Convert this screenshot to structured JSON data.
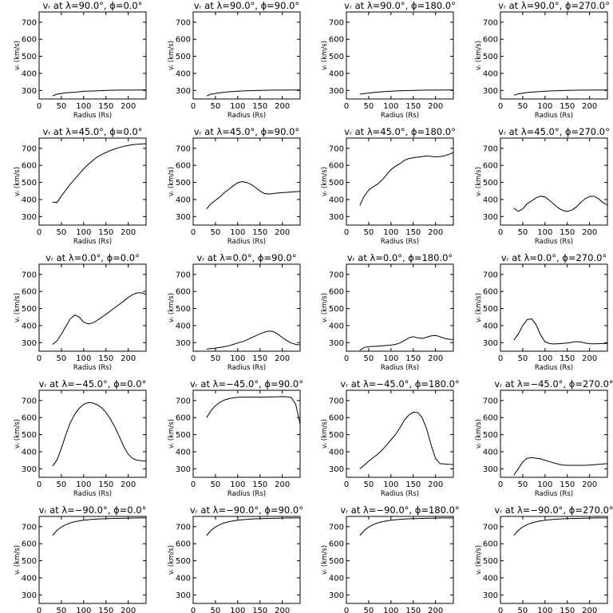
{
  "chart_data": {
    "type": "line",
    "xlabel": "Radius (Rs)",
    "ylabel": "vᵣ (km/s)",
    "xlim": [
      0,
      240
    ],
    "ylim": [
      250,
      760
    ],
    "xticks": [
      0,
      50,
      100,
      150,
      200
    ],
    "yticks": [
      300,
      400,
      500,
      600,
      700
    ],
    "grid": false,
    "panels": [
      {
        "title": "vᵣ at λ=90.0°, ϕ=0.0°",
        "x": [
          30,
          40,
          60,
          80,
          100,
          120,
          150,
          180,
          200,
          230,
          240
        ],
        "y": [
          268,
          278,
          286,
          290,
          295,
          297,
          300,
          302,
          302,
          303,
          303
        ]
      },
      {
        "title": "vᵣ at λ=90.0°, ϕ=90.0°",
        "x": [
          30,
          40,
          60,
          80,
          100,
          120,
          150,
          180,
          200,
          230,
          240
        ],
        "y": [
          268,
          278,
          286,
          292,
          296,
          298,
          300,
          302,
          302,
          303,
          303
        ]
      },
      {
        "title": "vᵣ at λ=90.0°, ϕ=180.0°",
        "x": [
          30,
          40,
          60,
          80,
          100,
          120,
          150,
          180,
          200,
          230,
          240
        ],
        "y": [
          278,
          282,
          288,
          292,
          296,
          298,
          300,
          302,
          302,
          303,
          303
        ]
      },
      {
        "title": "vᵣ at λ=90.0°, ϕ=270.0°",
        "x": [
          30,
          40,
          60,
          80,
          100,
          120,
          150,
          180,
          200,
          230,
          240
        ],
        "y": [
          272,
          280,
          288,
          292,
          296,
          298,
          300,
          302,
          302,
          303,
          303
        ]
      },
      {
        "title": "vᵣ at λ=45.0°, ϕ=0.0°",
        "x": [
          30,
          40,
          50,
          60,
          70,
          80,
          90,
          100,
          110,
          120,
          130,
          140,
          150,
          160,
          170,
          180,
          190,
          200,
          210,
          220,
          230,
          240
        ],
        "y": [
          385,
          382,
          420,
          455,
          490,
          520,
          550,
          580,
          605,
          628,
          648,
          663,
          676,
          687,
          697,
          705,
          712,
          717,
          721,
          724,
          726,
          727
        ]
      },
      {
        "title": "vᵣ at λ=45.0°, ϕ=90.0°",
        "x": [
          30,
          40,
          50,
          60,
          70,
          80,
          90,
          100,
          110,
          120,
          130,
          140,
          150,
          160,
          170,
          180,
          190,
          200,
          210,
          220,
          230,
          240
        ],
        "y": [
          345,
          375,
          395,
          415,
          440,
          460,
          480,
          498,
          505,
          500,
          488,
          470,
          450,
          435,
          432,
          435,
          438,
          440,
          442,
          444,
          446,
          448
        ]
      },
      {
        "title": "vᵣ at λ=45.0°, ϕ=180.0°",
        "x": [
          30,
          40,
          50,
          60,
          70,
          80,
          90,
          100,
          110,
          120,
          130,
          140,
          150,
          160,
          170,
          180,
          190,
          200,
          210,
          220,
          230,
          240
        ],
        "y": [
          365,
          420,
          455,
          475,
          490,
          515,
          545,
          575,
          595,
          610,
          630,
          640,
          645,
          648,
          652,
          655,
          653,
          650,
          652,
          656,
          665,
          675
        ]
      },
      {
        "title": "vᵣ at λ=45.0°, ϕ=270.0°",
        "x": [
          30,
          40,
          50,
          60,
          70,
          80,
          90,
          100,
          110,
          120,
          130,
          140,
          150,
          160,
          170,
          180,
          190,
          200,
          210,
          220,
          230,
          240
        ],
        "y": [
          350,
          330,
          345,
          375,
          392,
          410,
          420,
          415,
          395,
          372,
          350,
          335,
          330,
          338,
          355,
          382,
          405,
          418,
          420,
          405,
          382,
          368
        ]
      },
      {
        "title": "vᵣ at λ=0.0°, ϕ=0.0°",
        "x": [
          30,
          40,
          50,
          60,
          70,
          80,
          90,
          100,
          110,
          120,
          130,
          140,
          150,
          160,
          170,
          180,
          190,
          200,
          210,
          220,
          230,
          240
        ],
        "y": [
          290,
          310,
          350,
          395,
          440,
          462,
          450,
          420,
          410,
          415,
          430,
          448,
          466,
          486,
          505,
          524,
          544,
          565,
          582,
          592,
          592,
          582
        ]
      },
      {
        "title": "vᵣ at λ=0.0°, ϕ=90.0°",
        "x": [
          30,
          40,
          50,
          60,
          70,
          80,
          90,
          100,
          110,
          120,
          130,
          140,
          150,
          160,
          170,
          180,
          190,
          200,
          210,
          220,
          230,
          240
        ],
        "y": [
          262,
          265,
          268,
          272,
          276,
          282,
          290,
          298,
          305,
          315,
          328,
          340,
          352,
          362,
          368,
          365,
          350,
          330,
          312,
          298,
          290,
          286
        ]
      },
      {
        "title": "vᵣ at λ=0.0°, ϕ=180.0°",
        "x": [
          30,
          40,
          50,
          60,
          70,
          80,
          90,
          100,
          110,
          120,
          130,
          140,
          150,
          160,
          170,
          180,
          190,
          200,
          210,
          220,
          230,
          240
        ],
        "y": [
          255,
          272,
          276,
          278,
          280,
          282,
          284,
          286,
          290,
          298,
          312,
          328,
          335,
          328,
          325,
          332,
          340,
          342,
          335,
          325,
          320,
          318
        ]
      },
      {
        "title": "vᵣ at λ=0.0°, ϕ=270.0°",
        "x": [
          30,
          40,
          50,
          60,
          70,
          80,
          90,
          100,
          110,
          120,
          130,
          140,
          150,
          160,
          170,
          180,
          190,
          200,
          210,
          220,
          230,
          240
        ],
        "y": [
          315,
          350,
          400,
          435,
          440,
          405,
          345,
          305,
          295,
          292,
          294,
          296,
          298,
          302,
          306,
          304,
          298,
          294,
          293,
          294,
          295,
          296
        ]
      },
      {
        "title": "vᵣ at λ=−45.0°, ϕ=0.0°",
        "x": [
          30,
          40,
          50,
          60,
          70,
          80,
          90,
          100,
          110,
          120,
          130,
          140,
          150,
          160,
          170,
          180,
          190,
          200,
          210,
          220,
          230,
          240
        ],
        "y": [
          315,
          350,
          420,
          500,
          570,
          620,
          655,
          678,
          688,
          686,
          676,
          658,
          630,
          592,
          545,
          488,
          430,
          385,
          360,
          350,
          347,
          346
        ]
      },
      {
        "title": "vᵣ at λ=−45.0°, ϕ=90.0°",
        "x": [
          30,
          40,
          50,
          60,
          70,
          80,
          90,
          100,
          110,
          120,
          130,
          140,
          150,
          160,
          170,
          180,
          190,
          200,
          210,
          220,
          230,
          240
        ],
        "y": [
          600,
          640,
          670,
          690,
          703,
          711,
          716,
          719,
          720,
          720,
          720,
          720,
          720,
          720,
          721,
          721,
          722,
          723,
          722,
          718,
          680,
          560
        ]
      },
      {
        "title": "vᵣ at λ=−45.0°, ϕ=180.0°",
        "x": [
          30,
          40,
          50,
          60,
          70,
          80,
          90,
          100,
          110,
          120,
          130,
          140,
          150,
          160,
          170,
          180,
          190,
          200,
          210,
          220,
          230,
          240
        ],
        "y": [
          300,
          320,
          345,
          365,
          385,
          410,
          438,
          470,
          500,
          540,
          585,
          615,
          632,
          630,
          600,
          535,
          440,
          360,
          330,
          328,
          326,
          325
        ]
      },
      {
        "title": "vᵣ at λ=−45.0°, ϕ=270.0°",
        "x": [
          30,
          40,
          50,
          60,
          70,
          80,
          90,
          100,
          110,
          120,
          130,
          140,
          150,
          160,
          170,
          180,
          190,
          200,
          210,
          220,
          230,
          240
        ],
        "y": [
          262,
          300,
          340,
          362,
          365,
          362,
          358,
          350,
          342,
          334,
          327,
          322,
          320,
          320,
          320,
          320,
          320,
          322,
          324,
          326,
          328,
          330
        ]
      },
      {
        "title": "vᵣ at λ=−90.0°, ϕ=0.0°",
        "x": [
          30,
          40,
          50,
          60,
          70,
          80,
          90,
          100,
          120,
          140,
          160,
          180,
          200,
          220,
          240
        ],
        "y": [
          648,
          678,
          698,
          712,
          722,
          729,
          734,
          738,
          743,
          746,
          748,
          749,
          750,
          751,
          751
        ]
      },
      {
        "title": "vᵣ at λ=−90.0°, ϕ=90.0°",
        "x": [
          30,
          40,
          50,
          60,
          70,
          80,
          90,
          100,
          120,
          140,
          160,
          180,
          200,
          220,
          240
        ],
        "y": [
          648,
          678,
          698,
          712,
          722,
          729,
          734,
          738,
          743,
          746,
          748,
          749,
          750,
          751,
          751
        ]
      },
      {
        "title": "vᵣ at λ=−90.0°, ϕ=180.0°",
        "x": [
          30,
          40,
          50,
          60,
          70,
          80,
          90,
          100,
          120,
          140,
          160,
          180,
          200,
          220,
          240
        ],
        "y": [
          648,
          678,
          698,
          712,
          722,
          729,
          734,
          738,
          743,
          746,
          748,
          749,
          750,
          751,
          751
        ]
      },
      {
        "title": "vᵣ at λ=−90.0°, ϕ=270.0°",
        "x": [
          30,
          40,
          50,
          60,
          70,
          80,
          90,
          100,
          120,
          140,
          160,
          180,
          200,
          220,
          240
        ],
        "y": [
          648,
          678,
          698,
          712,
          722,
          729,
          734,
          738,
          743,
          746,
          748,
          749,
          750,
          751,
          751
        ]
      }
    ]
  }
}
